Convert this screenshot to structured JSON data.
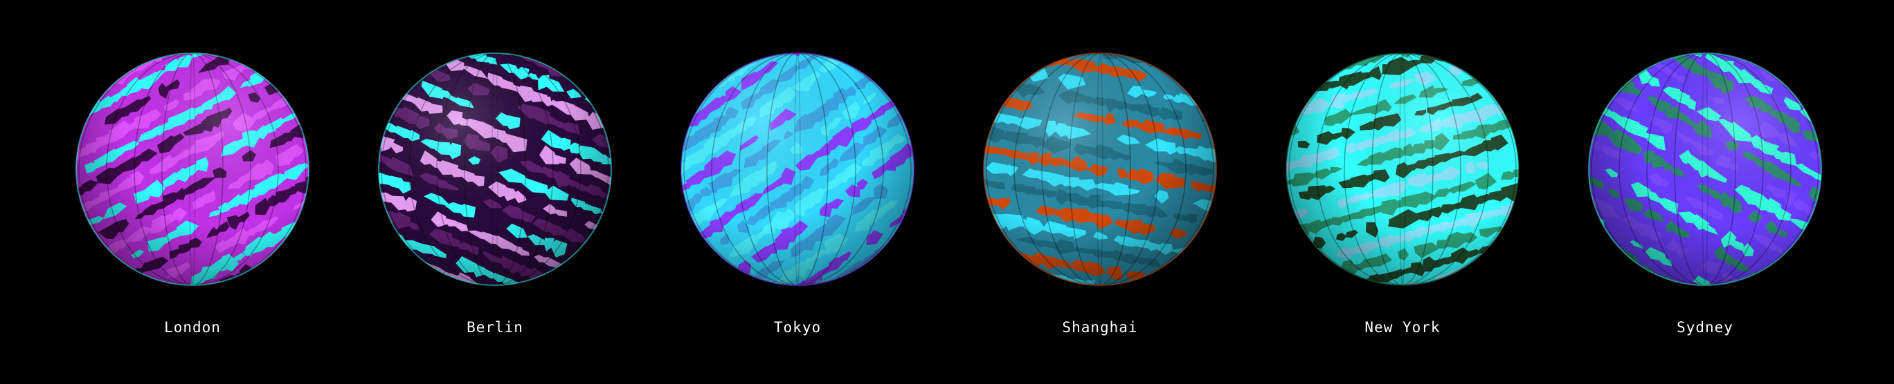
{
  "globes": [
    {
      "city": "London",
      "base": "#c232e8",
      "c1": "#33ffff",
      "c2": "#3d0a4a",
      "c3": "#e052ff",
      "light": "right"
    },
    {
      "city": "Berlin",
      "base": "#2a0a3e",
      "c1": "#33ffff",
      "c2": "#e49cf0",
      "c3": "#5e1f6e",
      "light": "left"
    },
    {
      "city": "Tokyo",
      "base": "#33d9ff",
      "c1": "#8a3dff",
      "c2": "#3aa6e6",
      "c3": "#49f0ff",
      "light": "left"
    },
    {
      "city": "Shanghai",
      "base": "#2a8aa6",
      "c1": "#d24a0c",
      "c2": "#33e6ff",
      "c3": "#1e6f85",
      "light": "left"
    },
    {
      "city": "New York",
      "base": "#33ffff",
      "c1": "#1f4a2c",
      "c2": "#8ae6ff",
      "c3": "#2aa37a",
      "light": "right"
    },
    {
      "city": "Sydney",
      "base": "#6a3dff",
      "c1": "#33ffdd",
      "c2": "#2a8a6e",
      "c3": "#7a48ff",
      "light": "right"
    }
  ]
}
